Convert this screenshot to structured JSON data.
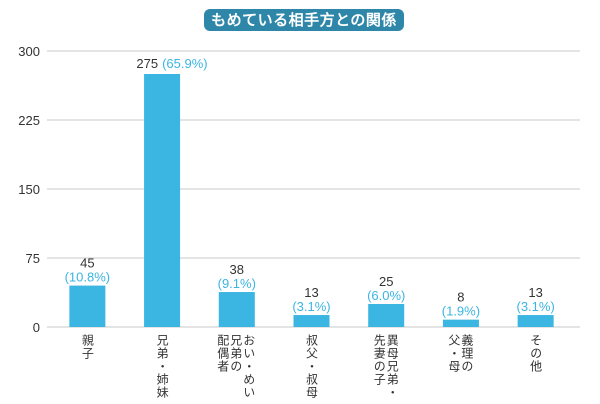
{
  "chart_data": {
    "type": "bar",
    "title": "もめている相手方との関係",
    "categories": [
      "親子",
      "兄弟・姉妹",
      "おい・めい兄弟の配偶者",
      "叔父・叔母",
      "異母兄弟・先妻の子",
      "義理の父・母",
      "その他"
    ],
    "category_lines": [
      [
        "親子"
      ],
      [
        "兄弟・姉妹"
      ],
      [
        "おい・めい",
        "兄弟の",
        "配偶者"
      ],
      [
        "叔父・叔母"
      ],
      [
        "異母兄弟・",
        "先妻の子"
      ],
      [
        "義理の",
        "父・母"
      ],
      [
        "その他"
      ]
    ],
    "values": [
      45,
      275,
      38,
      13,
      25,
      8,
      13
    ],
    "percent_labels": [
      "(10.8%)",
      "(65.9%)",
      "(9.1%)",
      "(3.1%)",
      "(6.0%)",
      "(1.9%)",
      "(3.1%)"
    ],
    "ylim": [
      0,
      300
    ],
    "yticks": [
      0,
      75,
      150,
      225,
      300
    ],
    "grid": true,
    "xlabel": "",
    "ylabel": "",
    "colors": {
      "bar": "#3bb5e2",
      "percent": "#3bb5e2",
      "title_bg": "#2e87a8",
      "grid": "#c8c8c8"
    }
  }
}
